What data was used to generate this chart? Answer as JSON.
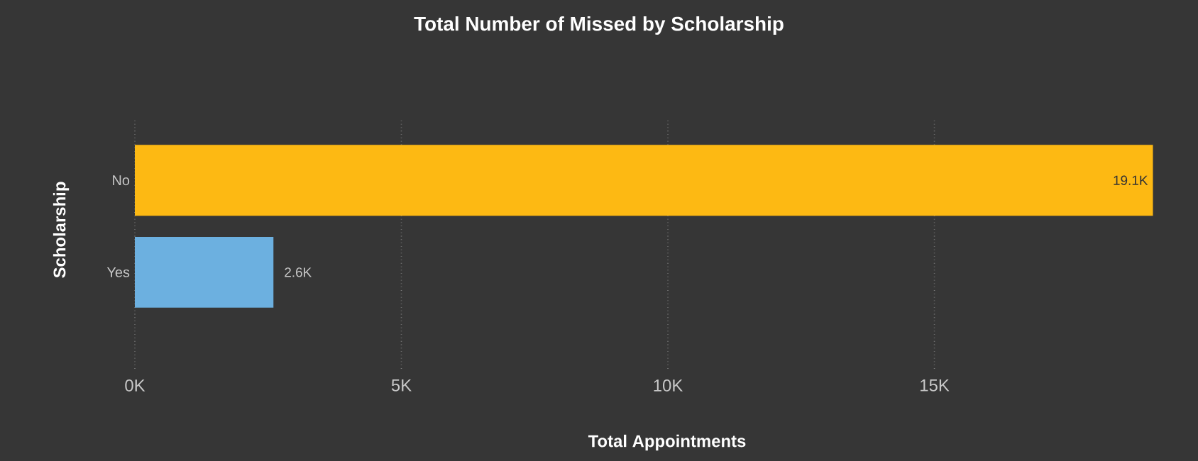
{
  "chart_data": {
    "type": "bar",
    "orientation": "horizontal",
    "title": "Total Number of Missed by Scholarship",
    "xlabel": "Total Appointments",
    "ylabel": "Scholarship",
    "categories": [
      "No",
      "Yes"
    ],
    "values": [
      19100,
      2600
    ],
    "colors": [
      "#fdb913",
      "#6cb0e0"
    ],
    "value_labels": [
      "19.1K",
      "2.6K"
    ],
    "xlim": [
      0,
      19200
    ],
    "xticks": [
      {
        "value": 0,
        "label": "0K"
      },
      {
        "value": 5000,
        "label": "5K"
      },
      {
        "value": 10000,
        "label": "10K"
      },
      {
        "value": 15000,
        "label": "15K"
      }
    ],
    "grid": "x"
  }
}
